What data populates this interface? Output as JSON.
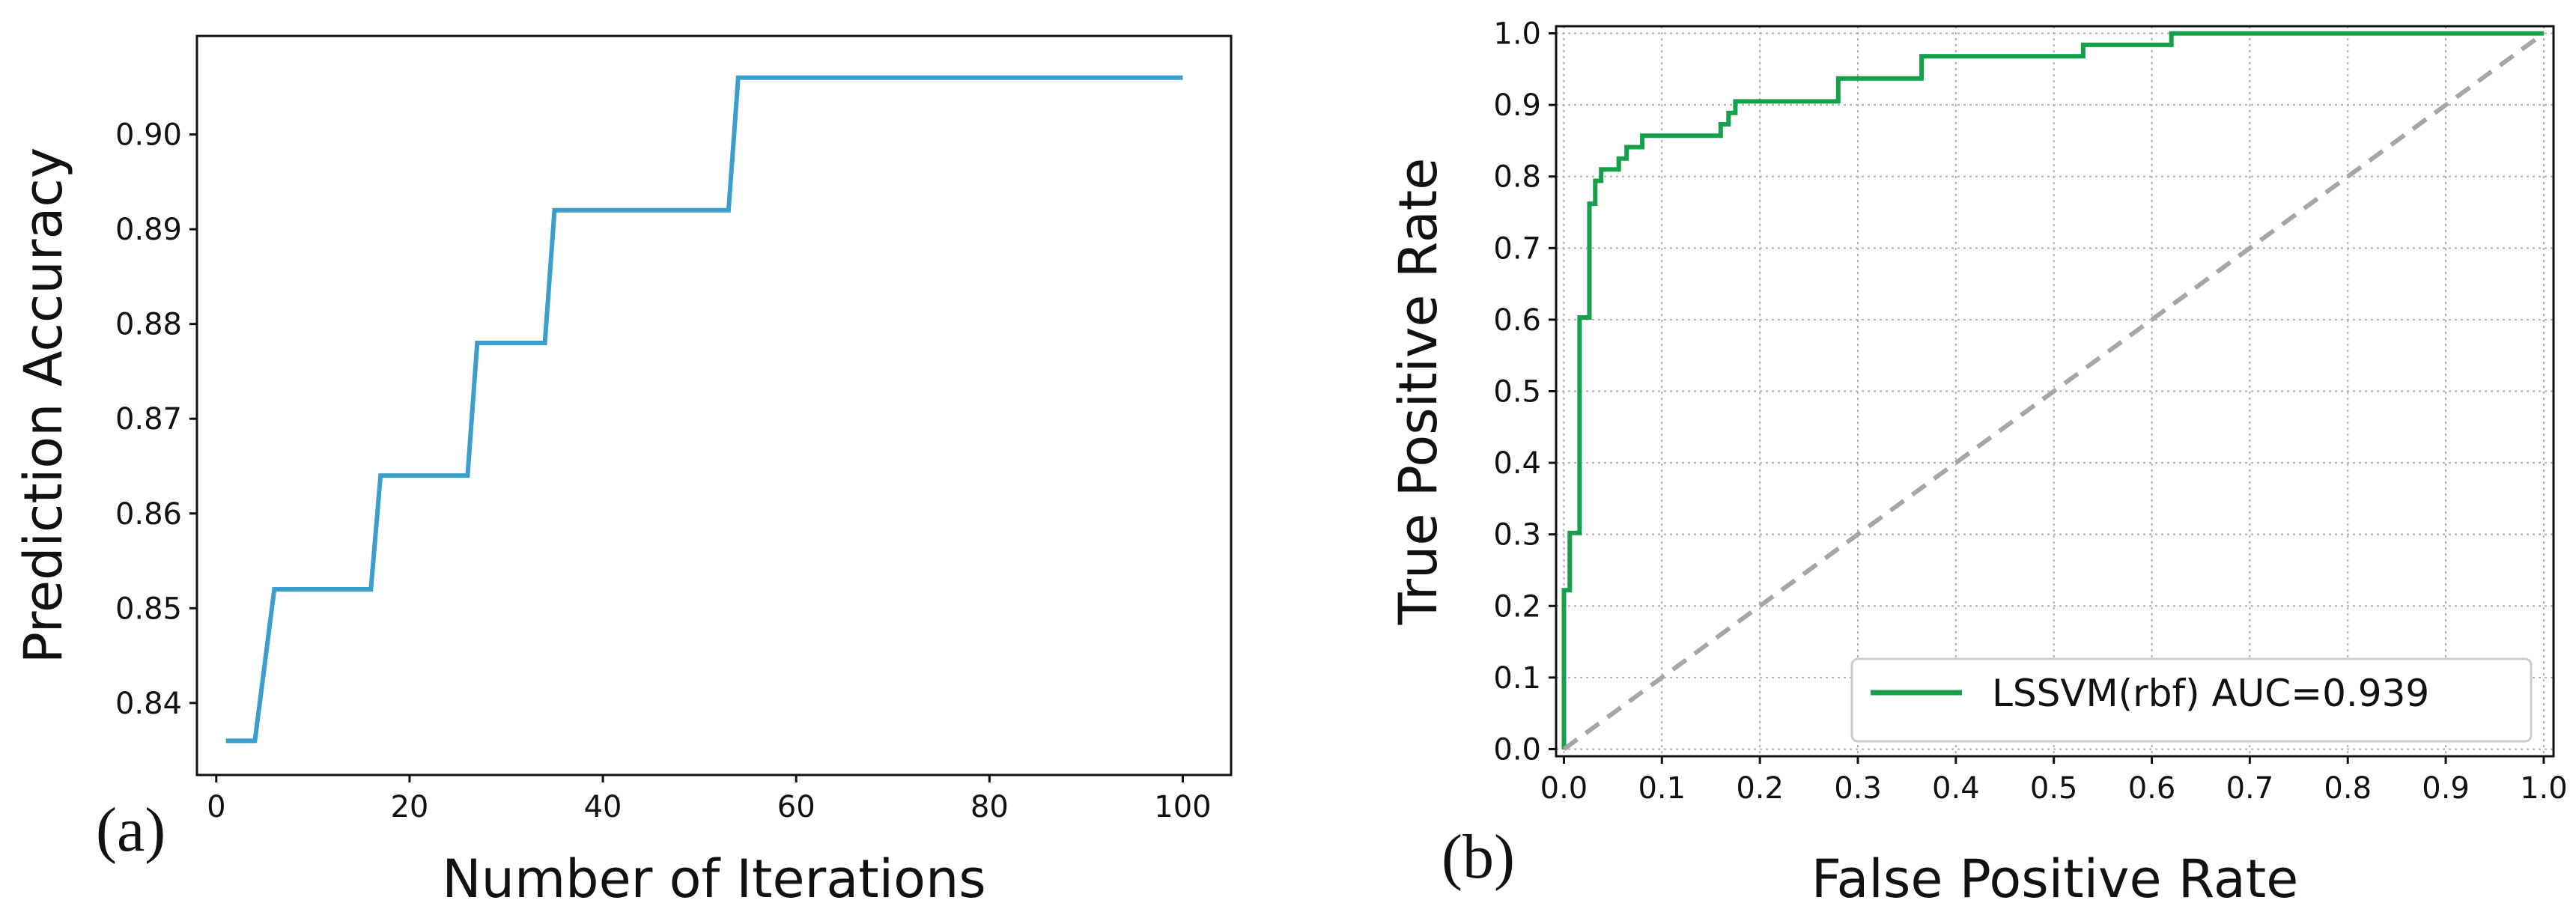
{
  "chart_data": [
    {
      "type": "line",
      "panel_label": "(a)",
      "title": "",
      "xlabel": "Number of Iterations",
      "ylabel": "Prediction Accuracy",
      "xlim": [
        -2,
        105
      ],
      "ylim": [
        0.8324,
        0.9104
      ],
      "xticks": [
        0,
        20,
        40,
        60,
        80,
        100
      ],
      "xtick_labels": [
        "0",
        "20",
        "40",
        "60",
        "80",
        "100"
      ],
      "yticks": [
        0.84,
        0.85,
        0.86,
        0.87,
        0.88,
        0.89,
        0.9
      ],
      "ytick_labels": [
        "0.84",
        "0.85",
        "0.86",
        "0.87",
        "0.88",
        "0.89",
        "0.90"
      ],
      "grid": false,
      "color": "#3a9fce",
      "series": [
        {
          "name": "accuracy",
          "x": [
            1,
            4,
            6,
            16,
            17,
            26,
            27,
            34,
            35,
            53,
            54,
            100
          ],
          "y": [
            0.836,
            0.836,
            0.852,
            0.852,
            0.864,
            0.864,
            0.878,
            0.878,
            0.892,
            0.892,
            0.906,
            0.906
          ]
        }
      ]
    },
    {
      "type": "line",
      "panel_label": "(b)",
      "title": "",
      "xlabel": "False Positive Rate",
      "ylabel": "True Positive Rate",
      "xlim": [
        -0.008,
        1.01
      ],
      "ylim": [
        -0.01,
        1.01
      ],
      "xticks": [
        0,
        0.1,
        0.2,
        0.3,
        0.4,
        0.5,
        0.6,
        0.7,
        0.8,
        0.9,
        1.0
      ],
      "xtick_labels": [
        "0.0",
        "0.1",
        "0.2",
        "0.3",
        "0.4",
        "0.5",
        "0.6",
        "0.7",
        "0.8",
        "0.9",
        "1.0"
      ],
      "yticks": [
        0,
        0.1,
        0.2,
        0.3,
        0.4,
        0.5,
        0.6,
        0.7,
        0.8,
        0.9,
        1.0
      ],
      "ytick_labels": [
        "0.0",
        "0.1",
        "0.2",
        "0.3",
        "0.4",
        "0.5",
        "0.6",
        "0.7",
        "0.8",
        "0.9",
        "1.0"
      ],
      "grid": true,
      "legend_position": "bottom-right",
      "series": [
        {
          "name": "LSSVM(rbf) AUC=0.939",
          "color": "#15a04a",
          "style": "solid",
          "x": [
            0,
            0,
            0.006,
            0.006,
            0.016,
            0.016,
            0.026,
            0.026,
            0.032,
            0.032,
            0.038,
            0.038,
            0.056,
            0.056,
            0.064,
            0.064,
            0.08,
            0.08,
            0.095,
            0.095,
            0.16,
            0.16,
            0.168,
            0.168,
            0.175,
            0.175,
            0.185,
            0.185,
            0.28,
            0.28,
            0.365,
            0.365,
            0.53,
            0.53,
            0.62,
            0.62,
            1.0
          ],
          "y": [
            0,
            0.222,
            0.222,
            0.302,
            0.302,
            0.603,
            0.603,
            0.762,
            0.762,
            0.794,
            0.794,
            0.81,
            0.81,
            0.825,
            0.825,
            0.841,
            0.841,
            0.857,
            0.857,
            0.857,
            0.857,
            0.873,
            0.873,
            0.889,
            0.889,
            0.905,
            0.905,
            0.905,
            0.905,
            0.937,
            0.937,
            0.968,
            0.968,
            0.984,
            0.984,
            1.0,
            1.0
          ]
        },
        {
          "name": "chance",
          "color": "#a6a6a6",
          "style": "dashed",
          "x": [
            0,
            1
          ],
          "y": [
            0,
            1
          ]
        }
      ]
    }
  ]
}
